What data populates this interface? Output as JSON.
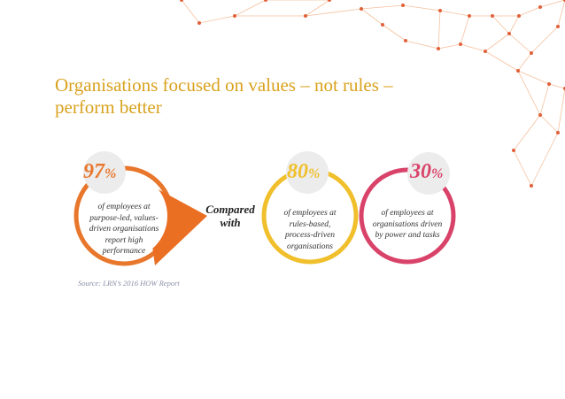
{
  "slide": {
    "title_lines": [
      "Organisations focused on values – not rules –",
      "perform better"
    ],
    "comparison_label_lines": [
      "Compared",
      "with"
    ],
    "source": "Source: LRN’s 2016 HOW Report"
  },
  "stats": [
    {
      "value": "97",
      "unit": "%",
      "color": "#e8762b",
      "lines": [
        "of employees at",
        "purpose-led, values-",
        "driven organisations",
        "report high",
        "performance"
      ]
    },
    {
      "value": "80",
      "unit": "%",
      "color": "#f0bf2b",
      "lines": [
        "of employees at",
        "rules-based,",
        "process-driven",
        "organisations"
      ]
    },
    {
      "value": "30",
      "unit": "%",
      "color": "#d9436a",
      "lines": [
        "of employees at",
        "organisations driven",
        "by power and tasks"
      ]
    }
  ],
  "colors": {
    "title": "#d9a21e",
    "decoration": "#ec8c4c",
    "source": "#8a8fa8"
  }
}
